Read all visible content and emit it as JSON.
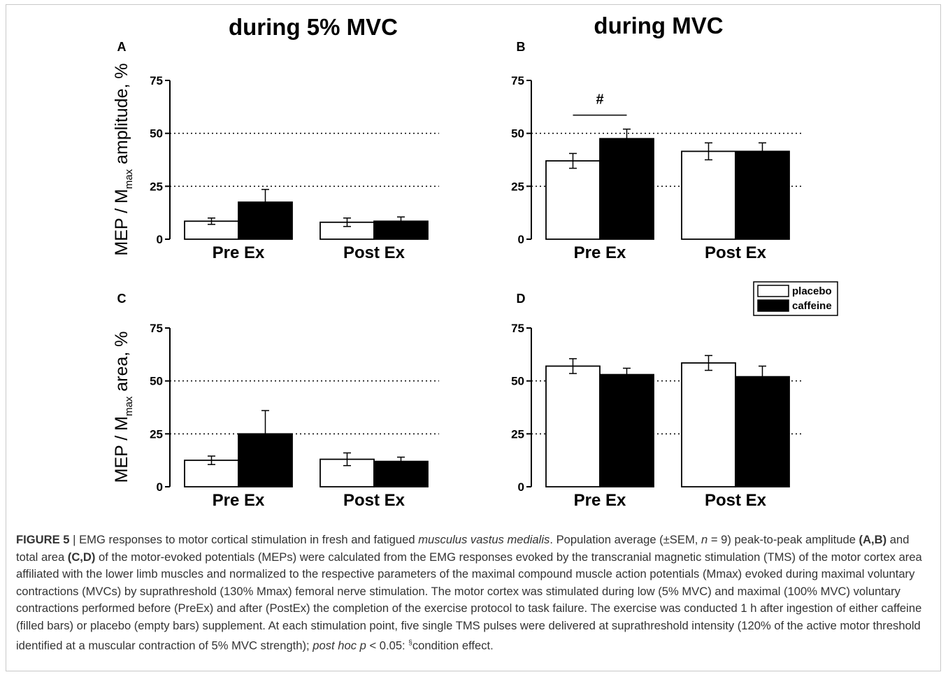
{
  "figure": {
    "column_titles": [
      "during 5% MVC",
      "during MVC"
    ],
    "y_titles": {
      "amplitude": {
        "pre": "MEP / M",
        "sub": "max",
        "post": " amplitude, %"
      },
      "area": {
        "pre": "MEP / M",
        "sub": "max",
        "post": " area, %"
      }
    },
    "legend": [
      {
        "label": "placebo",
        "fill": "#ffffff"
      },
      {
        "label": "caffeine",
        "fill": "#000000"
      }
    ]
  },
  "chart_data": [
    {
      "panel": "A",
      "type": "bar",
      "categories": [
        "Pre Ex",
        "Post Ex"
      ],
      "ylim": [
        0,
        75
      ],
      "yticks": [
        0,
        25,
        50,
        75
      ],
      "ref_lines": [
        25,
        50
      ],
      "series": [
        {
          "name": "placebo",
          "color": "#ffffff",
          "values": [
            8.5,
            8
          ],
          "err": [
            1.5,
            2
          ]
        },
        {
          "name": "caffeine",
          "color": "#000000",
          "values": [
            17.5,
            8.5
          ],
          "err": [
            6,
            2
          ]
        }
      ],
      "annotation": null
    },
    {
      "panel": "B",
      "type": "bar",
      "categories": [
        "Pre Ex",
        "Post Ex"
      ],
      "ylim": [
        0,
        75
      ],
      "yticks": [
        0,
        25,
        50,
        75
      ],
      "ref_lines": [
        25,
        50
      ],
      "series": [
        {
          "name": "placebo",
          "color": "#ffffff",
          "values": [
            37,
            41.5
          ],
          "err": [
            3.5,
            4
          ]
        },
        {
          "name": "caffeine",
          "color": "#000000",
          "values": [
            47.5,
            41.5
          ],
          "err": [
            4.5,
            4
          ]
        }
      ],
      "annotation": "#"
    },
    {
      "panel": "C",
      "type": "bar",
      "categories": [
        "Pre Ex",
        "Post Ex"
      ],
      "ylim": [
        0,
        75
      ],
      "yticks": [
        0,
        25,
        50,
        75
      ],
      "ref_lines": [
        25,
        50
      ],
      "series": [
        {
          "name": "placebo",
          "color": "#ffffff",
          "values": [
            12.5,
            13
          ],
          "err": [
            2,
            3
          ]
        },
        {
          "name": "caffeine",
          "color": "#000000",
          "values": [
            25,
            12
          ],
          "err": [
            11,
            2
          ]
        }
      ],
      "annotation": null
    },
    {
      "panel": "D",
      "type": "bar",
      "categories": [
        "Pre Ex",
        "Post Ex"
      ],
      "ylim": [
        0,
        75
      ],
      "yticks": [
        0,
        25,
        50,
        75
      ],
      "ref_lines": [
        25,
        50
      ],
      "series": [
        {
          "name": "placebo",
          "color": "#ffffff",
          "values": [
            57,
            58.5
          ],
          "err": [
            3.5,
            3.5
          ]
        },
        {
          "name": "caffeine",
          "color": "#000000",
          "values": [
            53,
            52
          ],
          "err": [
            3,
            5
          ]
        }
      ],
      "annotation": null
    }
  ],
  "caption": {
    "label": "FIGURE 5",
    "sep": " | ",
    "t1": "EMG responses to motor cortical stimulation in fresh and fatigued ",
    "i1": "musculus vastus medialis",
    "t2": ". Population average (±SEM, ",
    "i2": "n",
    "t3": " = 9) peak-to-peak amplitude ",
    "b1": "(A,B)",
    "t4": " and total area ",
    "b2": "(C,D)",
    "t5": " of the motor-evoked potentials (MEPs) were calculated from the EMG responses evoked by the transcranial magnetic stimulation (TMS) of the motor cortex area affiliated with the lower limb muscles and normalized to the respective parameters of the maximal compound muscle action potentials (Mmax) evoked during maximal voluntary contractions (MVCs) by suprathreshold (130% Mmax) femoral nerve stimulation. The motor cortex was stimulated during low (5% MVC) and maximal (100% MVC) voluntary contractions performed before (PreEx) and after (PostEx) the completion of the exercise protocol to task failure. The exercise was conducted 1 h after ingestion of either caffeine (filled bars) or placebo (empty bars) supplement. At each stimulation point, five single TMS pulses were delivered at suprathreshold intensity (120% of the active motor threshold identified at a muscular contraction of 5% MVC strength); ",
    "i3": "post hoc p",
    "t6": " < 0.05: ",
    "sup": "§",
    "t7": "condition effect."
  }
}
